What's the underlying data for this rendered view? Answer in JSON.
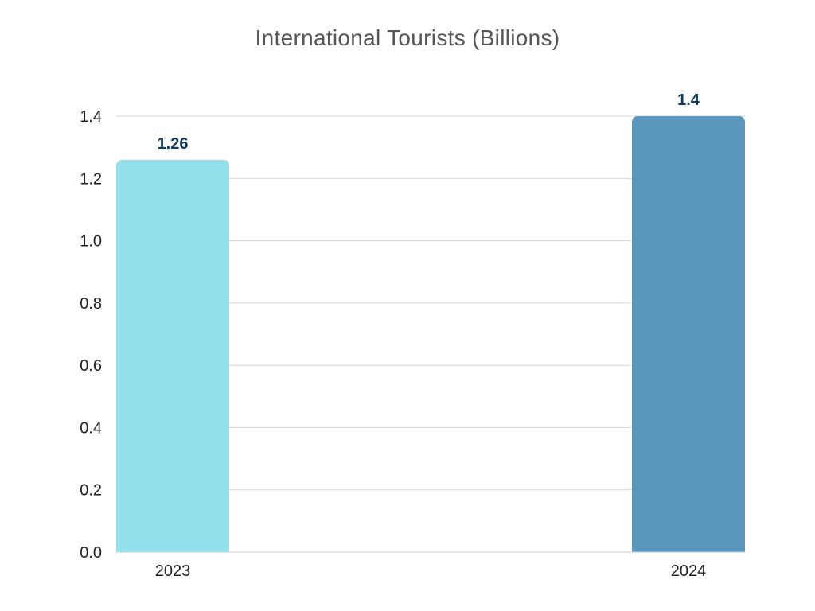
{
  "chart_data": {
    "type": "bar",
    "title": "International Tourists (Billions)",
    "xlabel": "",
    "ylabel": "",
    "categories": [
      "2023",
      "2024"
    ],
    "values": [
      1.26,
      1.4
    ],
    "data_labels": [
      "1.26",
      "1.4"
    ],
    "y_ticks": [
      "0.0",
      "0.2",
      "0.4",
      "0.6",
      "0.8",
      "1.0",
      "1.2",
      "1.4"
    ],
    "ylim": [
      0,
      1.4
    ],
    "grid": true,
    "legend": "none",
    "colors": [
      "#93e1ed",
      "#5b97bc"
    ],
    "label_color": "#0f3a5f"
  }
}
